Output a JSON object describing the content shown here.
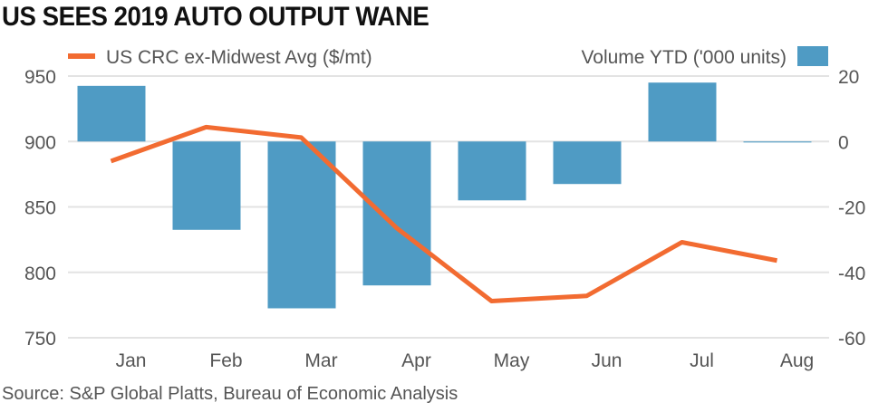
{
  "chart_data": {
    "type": "bar+line",
    "title": "US SEES 2019 AUTO OUTPUT WANE",
    "source": "Source: S&P Global Platts, Bureau of Economic Analysis",
    "categories": [
      "Jan",
      "Feb",
      "Mar",
      "Apr",
      "May",
      "Jun",
      "Jul",
      "Aug"
    ],
    "series": [
      {
        "name": "US CRC ex-Midwest Avg ($/mt)",
        "type": "line",
        "axis": "left",
        "color": "#f26b31",
        "values": [
          885,
          911,
          903,
          834,
          778,
          782,
          823,
          809
        ]
      },
      {
        "name": "Volume YTD ('000 units)",
        "type": "bar",
        "axis": "right",
        "color": "#4f9bc4",
        "values": [
          17,
          -27,
          -51,
          -44,
          -18,
          -13,
          18,
          -0.3
        ]
      }
    ],
    "left_axis": {
      "ylim": [
        750,
        950
      ],
      "ticks": [
        "950",
        "900",
        "850",
        "800",
        "750"
      ]
    },
    "right_axis": {
      "ylim": [
        -60,
        20
      ],
      "ticks": [
        "20",
        "0",
        "-20",
        "-40",
        "-60"
      ]
    },
    "grid": true,
    "legend": "top"
  }
}
